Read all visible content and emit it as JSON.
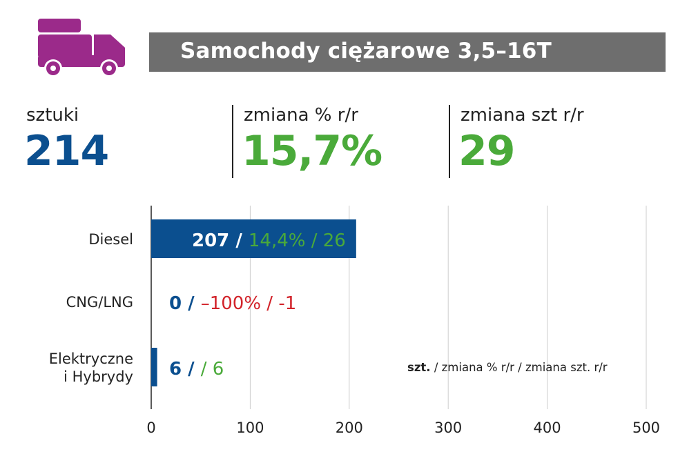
{
  "header": {
    "icon": "truck-icon",
    "icon_color": "#9b2a8a",
    "title": "Samochody ciężarowe 3,5–16T",
    "title_bg": "#6e6e6e"
  },
  "stats": [
    {
      "label": "sztuki",
      "value": "214",
      "color": "#0b4f8f"
    },
    {
      "label": "zmiana % r/r",
      "value": "15,7%",
      "color": "#4aaa3a"
    },
    {
      "label": "zmiana szt r/r",
      "value": "29",
      "color": "#4aaa3a"
    }
  ],
  "legend_note": {
    "bold": "szt.",
    "rest": " / zmiana % r/r / zmiana szt. r/r"
  },
  "colors": {
    "blue": "#0b4f8f",
    "green": "#4aaa3a",
    "red": "#d2232a",
    "grid": "#cccccc"
  },
  "chart_data": {
    "type": "bar",
    "orientation": "horizontal",
    "categories": [
      "Diesel",
      "CNG/LNG",
      "Elektryczne\ni Hybrydy"
    ],
    "values": [
      207,
      0,
      6
    ],
    "annotations": [
      {
        "units": "207 /",
        "pct": "14,4%",
        "diff": "26",
        "pct_color": "green"
      },
      {
        "units": "0 /",
        "pct": "–100%",
        "diff": "-1",
        "pct_color": "red"
      },
      {
        "units": "6 /",
        "pct": "",
        "diff": "6",
        "pct_color": "green"
      }
    ],
    "xlim": [
      0,
      500
    ],
    "xticks": [
      0,
      100,
      200,
      300,
      400,
      500
    ],
    "grid": true
  }
}
